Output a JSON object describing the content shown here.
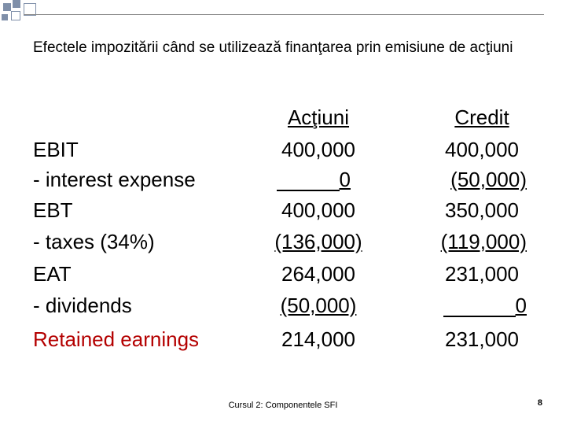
{
  "title": "Efectele impozitării când se utilizează finanţarea prin emisiune de acţiuni",
  "accent_color": "#7f8fa9",
  "columns": {
    "shares": "Acţiuni",
    "credit": "Credit"
  },
  "rows": [
    {
      "label": "EBIT",
      "shares": "400,000",
      "credit": "400,000"
    },
    {
      "label": "- interest expense",
      "shares": "0",
      "credit": "(50,000)"
    },
    {
      "label": "EBT",
      "shares": "400,000",
      "credit": "350,000"
    },
    {
      "label": "- taxes (34%)",
      "shares": "(136,000)",
      "credit": "(119,000)"
    },
    {
      "label": "EAT",
      "shares": "264,000",
      "credit": "231,000"
    },
    {
      "label": "- dividends",
      "shares": "(50,000)",
      "credit": "0"
    },
    {
      "label": "Retained earnings",
      "shares": "214,000",
      "credit": "231,000"
    }
  ],
  "footer": "Cursul 2: Componentele SFI",
  "page_number": "8"
}
